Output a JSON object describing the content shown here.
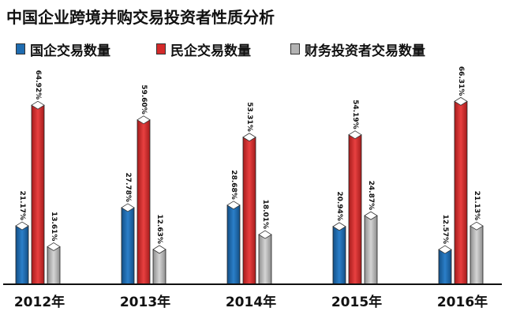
{
  "chart_data": {
    "type": "bar",
    "title": "中国企业跨境并购交易投资者性质分析",
    "categories": [
      "2012年",
      "2013年",
      "2014年",
      "2015年",
      "2016年"
    ],
    "series": [
      {
        "name": "国企交易数量",
        "color": "#1f6cb0",
        "values": [
          21.17,
          27.78,
          28.68,
          20.94,
          12.57
        ],
        "labels": [
          "21.17%",
          "27.78%",
          "28.68%",
          "20.94%",
          "12.57%"
        ]
      },
      {
        "name": "民企交易数量",
        "color": "#d42a2a",
        "values": [
          64.92,
          59.6,
          53.31,
          54.19,
          66.31
        ],
        "labels": [
          "64.92%",
          "59.60%",
          "53.31%",
          "54.19%",
          "66.31%"
        ]
      },
      {
        "name": "财务投资者交易数量",
        "color": "#b3b3b3",
        "values": [
          13.61,
          12.63,
          18.01,
          24.87,
          21.13
        ],
        "labels": [
          "13.61%",
          "12.63%",
          "18.01%",
          "24.87%",
          "21.13%"
        ]
      }
    ],
    "ylim": [
      0,
      75
    ],
    "grid": false,
    "legend": "top"
  }
}
